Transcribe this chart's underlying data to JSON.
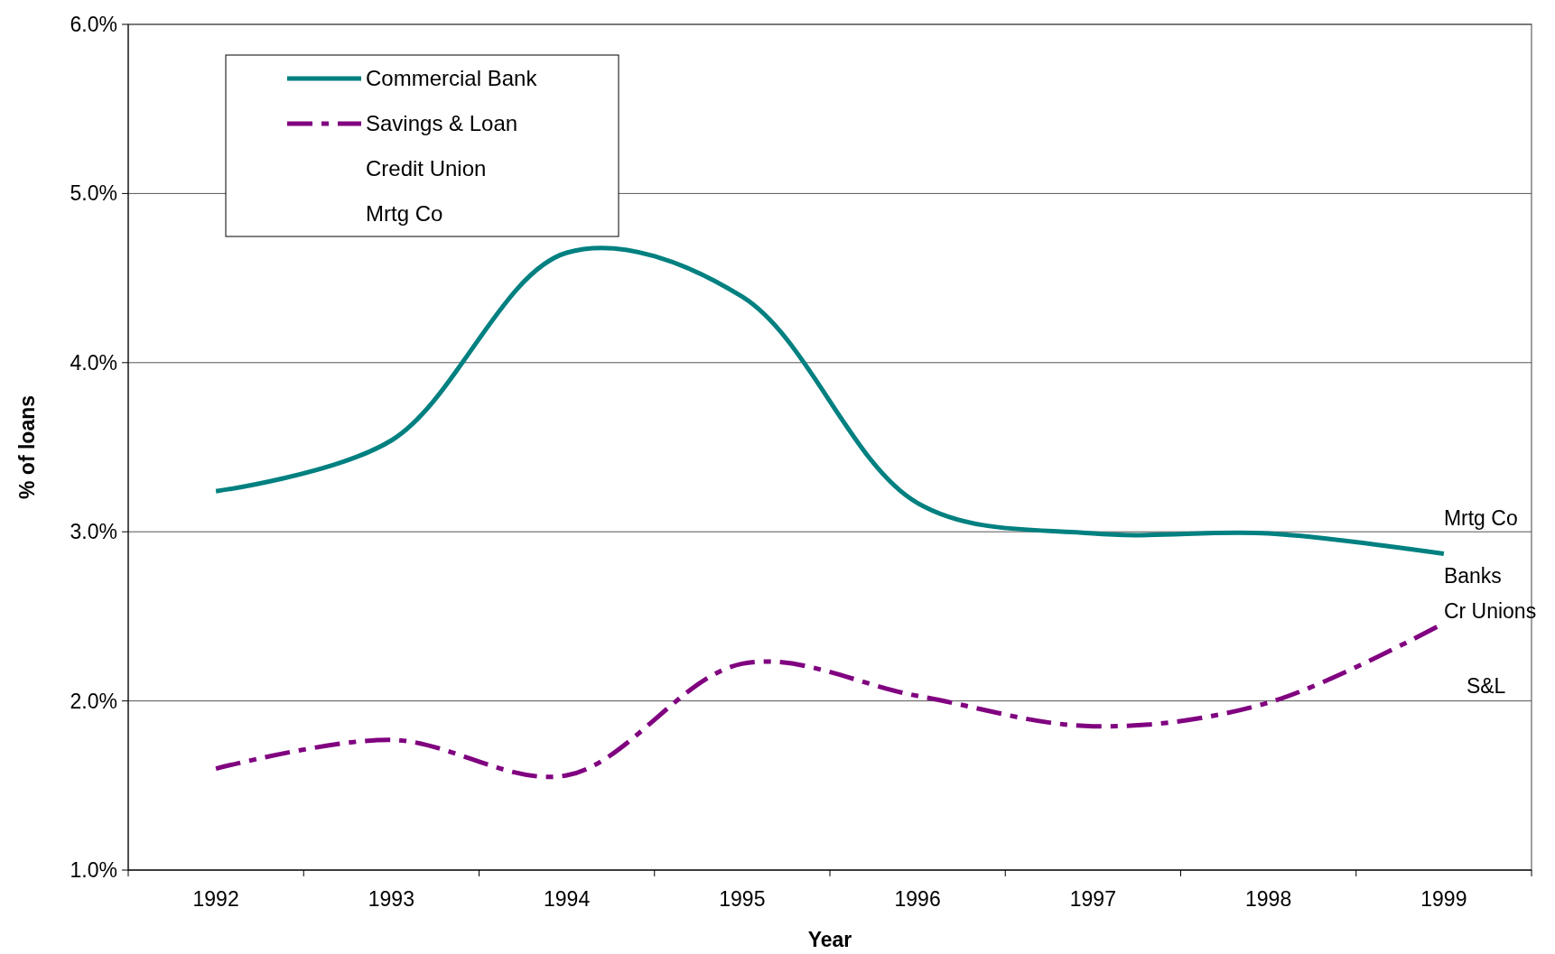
{
  "chart_data": {
    "type": "line",
    "xlabel": "Year",
    "ylabel": "% of loans",
    "categories": [
      "1992",
      "1993",
      "1994",
      "1995",
      "1996",
      "1997",
      "1998",
      "1999"
    ],
    "series": [
      {
        "name": "Commercial Bank",
        "color": "#008080",
        "line_style": "solid",
        "values": [
          3.24,
          3.54,
          4.65,
          4.39,
          3.17,
          2.99,
          2.99,
          2.87
        ]
      },
      {
        "name": "Savings & Loan",
        "color": "#800080",
        "line_style": "dashed",
        "values": [
          1.6,
          1.77,
          1.56,
          2.22,
          2.03,
          1.85,
          1.99,
          2.46
        ]
      },
      {
        "name": "Credit Union",
        "line_style": "solid",
        "values": [
          null,
          null,
          null,
          null,
          null,
          null,
          null,
          null
        ]
      },
      {
        "name": "Mrtg Co",
        "line_style": "solid",
        "values": [
          null,
          null,
          null,
          null,
          null,
          null,
          null,
          null
        ]
      }
    ],
    "ylim": [
      1,
      6
    ],
    "yticks": [
      {
        "value": 1,
        "label": "1.0%"
      },
      {
        "value": 2,
        "label": "2.0%"
      },
      {
        "value": 3,
        "label": "3.0%"
      },
      {
        "value": 4,
        "label": "4.0%"
      },
      {
        "value": 5,
        "label": "5.0%"
      },
      {
        "value": 6,
        "label": "6.0%"
      }
    ],
    "grid": "y",
    "legend": "top left",
    "annotations": [
      "Mrtg Co",
      "Banks",
      "Cr Unions",
      "S&L"
    ]
  }
}
